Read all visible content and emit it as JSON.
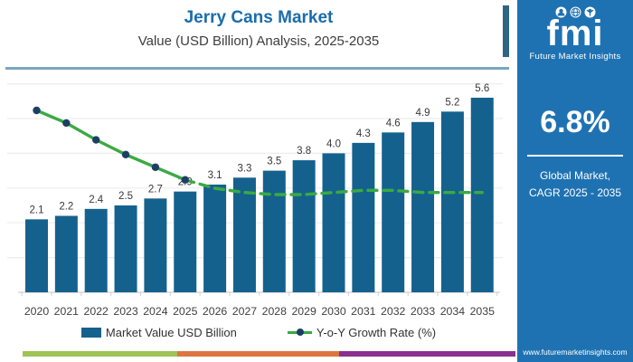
{
  "header": {
    "title": "Jerry Cans Market",
    "subtitle": "Value (USD Billion) Analysis, 2025-2035"
  },
  "legend": {
    "bar_label": "Market Value USD Billion",
    "line_label": "Y-o-Y Growth Rate (%)"
  },
  "side_panel": {
    "logo_text": "fmi",
    "logo_subtext": "Future Market Insights",
    "cagr_value": "6.8%",
    "cagr_caption_line1": "Global Market,",
    "cagr_caption_line2": "CAGR 2025 - 2035",
    "website": "www.futuremarketinsights.com",
    "background_color": "#1f72b2"
  },
  "chart_data": {
    "type": "bar",
    "title": "Jerry Cans Market Value (USD Billion) Analysis, 2025-2035",
    "categories": [
      "2020",
      "2021",
      "2022",
      "2023",
      "2024",
      "2025",
      "2026",
      "2027",
      "2028",
      "2029",
      "2030",
      "2031",
      "2032",
      "2033",
      "2034",
      "2035"
    ],
    "series": [
      {
        "name": "Market Value USD Billion",
        "type": "bar",
        "color": "#15618e",
        "values": [
          2.1,
          2.2,
          2.4,
          2.5,
          2.7,
          2.9,
          3.1,
          3.3,
          3.5,
          3.8,
          4.0,
          4.3,
          4.6,
          4.9,
          5.2,
          5.6
        ]
      },
      {
        "name": "Y-o-Y Growth Rate (%)",
        "type": "line",
        "color": "#3aaa44",
        "marker_color": "#1d3f64",
        "style": "solid with markers 2020-2025, dashed 2026-2035",
        "values_estimated_pct": [
          10.0,
          9.4,
          8.6,
          7.9,
          7.3,
          6.7,
          6.3,
          6.1,
          6.0,
          6.0,
          6.1,
          6.2,
          6.2,
          6.1,
          6.1,
          6.1
        ]
      }
    ],
    "ylabel": "",
    "xlabel": "",
    "ylim": [
      0,
      6.5
    ],
    "grid": "horizontal, every 1 unit",
    "legend_position": "bottom",
    "value_labels": "above each bar, one decimal"
  },
  "colors": {
    "bar": "#15618e",
    "line": "#3aaa44",
    "marker": "#1d3f64",
    "title": "#1b6cab",
    "panel": "#1f72b2",
    "strip_green": "#9dc455",
    "strip_orange": "#dd7540",
    "strip_purple": "#8a3090"
  }
}
